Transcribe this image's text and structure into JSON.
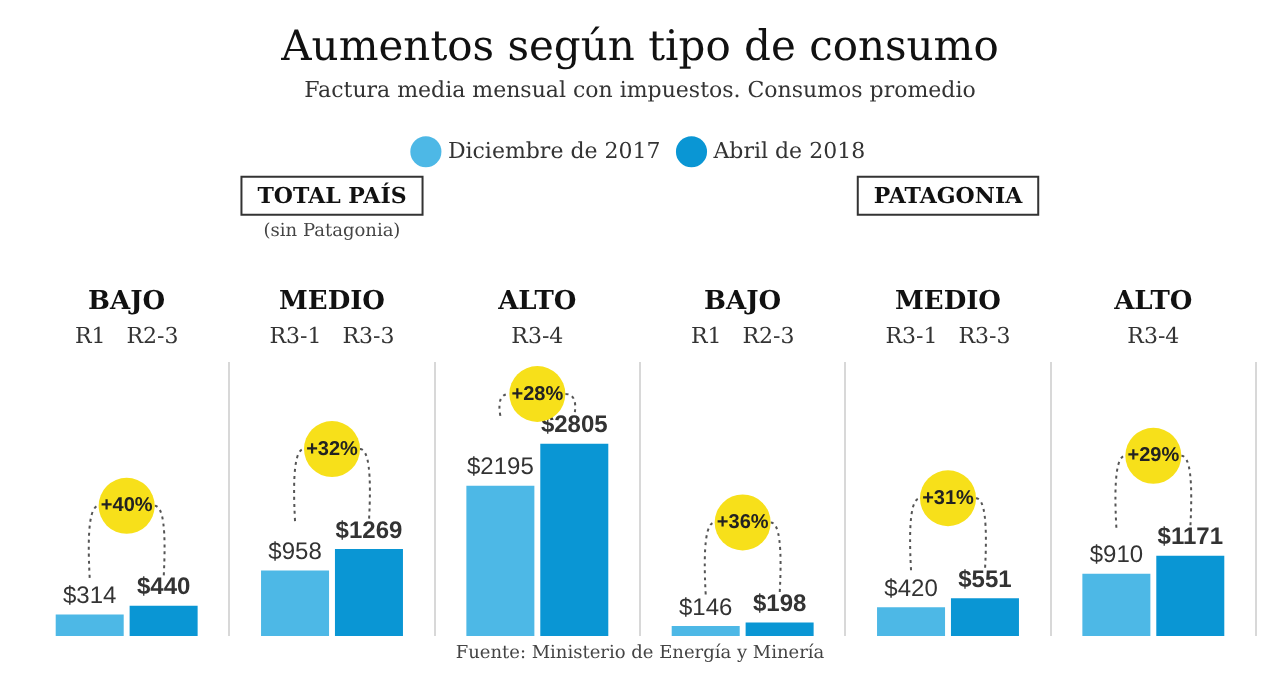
{
  "chart_data": {
    "type": "bar",
    "title": "Aumentos según tipo de consumo",
    "subtitle": "Factura media mensual con impuestos. Consumos promedio",
    "categories": [
      "BAJO",
      "MEDIO",
      "ALTO",
      "BAJO",
      "MEDIO",
      "ALTO"
    ],
    "series": [
      {
        "name": "Diciembre de 2017",
        "color": "#4db8e6",
        "values": [
          314,
          958,
          2195,
          146,
          420,
          910
        ],
        "value_labels": [
          "$314",
          "$958",
          "$2195",
          "$146",
          "$420",
          "$910"
        ]
      },
      {
        "name": "Abril de 2018",
        "color": "#0a96d4",
        "values": [
          440,
          1269,
          2805,
          198,
          551,
          1171
        ],
        "value_labels": [
          "$440",
          "$1269",
          "$2805",
          "$198",
          "$551",
          "$1171"
        ]
      }
    ],
    "annotations": [
      "TOTAL PAÍS",
      "(sin Patagonia)",
      "PATAGONIA",
      "R1   R2-3",
      "R3-1   R3-3",
      "R3-4",
      "R1   R2-3",
      "R3-1   R3-3",
      "R3-4",
      "+40%",
      "+32%",
      "+28%",
      "+36%",
      "+31%",
      "+29%",
      "Fuente: Ministerio de Energía y Minería"
    ],
    "grid": "x",
    "legend": "top",
    "tick_labels": "x"
  }
}
